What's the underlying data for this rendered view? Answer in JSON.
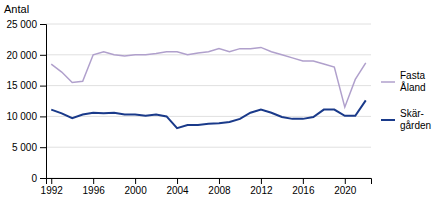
{
  "chart_data": {
    "type": "line",
    "ylabel": "Antal",
    "x": [
      1992,
      1993,
      1994,
      1995,
      1996,
      1997,
      1998,
      1999,
      2000,
      2001,
      2002,
      2003,
      2004,
      2005,
      2006,
      2007,
      2008,
      2009,
      2010,
      2011,
      2012,
      2013,
      2014,
      2015,
      2016,
      2017,
      2018,
      2019,
      2020,
      2021,
      2022
    ],
    "series": [
      {
        "name": "Fasta\nÅland",
        "color": "#b0a0cc",
        "values": [
          18500,
          17200,
          15500,
          15700,
          20000,
          20500,
          20000,
          19800,
          20000,
          20000,
          20200,
          20500,
          20500,
          20000,
          20300,
          20500,
          21000,
          20500,
          21000,
          21000,
          21200,
          20500,
          20000,
          19500,
          19000,
          19000,
          18500,
          18000,
          11500,
          16000,
          18700
        ]
      },
      {
        "name": "Skär-\ngården",
        "color": "#1a3a8a",
        "values": [
          11100,
          10500,
          9700,
          10300,
          10600,
          10500,
          10600,
          10300,
          10300,
          10100,
          10300,
          10000,
          8100,
          8600,
          8600,
          8800,
          8900,
          9100,
          9600,
          10600,
          11100,
          10600,
          9900,
          9600,
          9600,
          9900,
          11100,
          11100,
          10100,
          10100,
          12600
        ]
      }
    ],
    "xlim": [
      1991.5,
      2022.5
    ],
    "xticks": [
      1992,
      1996,
      2000,
      2004,
      2008,
      2012,
      2016,
      2020
    ],
    "ylim": [
      0,
      25000
    ],
    "yticks": [
      0,
      {
        "value": 5000,
        "label": "5 000"
      },
      {
        "value": 10000,
        "label": "10 000"
      },
      {
        "value": 15000,
        "label": "15 000"
      },
      {
        "value": 20000,
        "label": "20 000"
      },
      {
        "value": 25000,
        "label": "25 000"
      }
    ],
    "grid": true,
    "legend": "right"
  }
}
